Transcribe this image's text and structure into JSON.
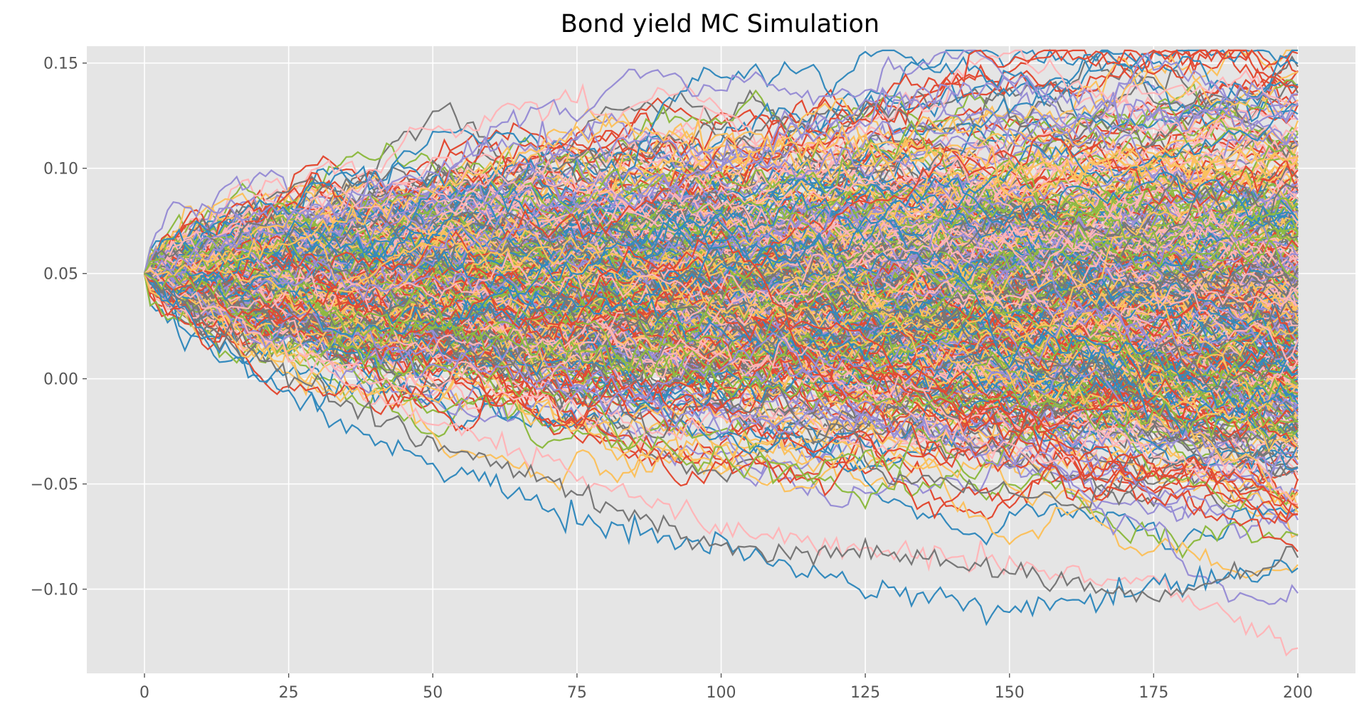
{
  "chart_data": {
    "type": "line",
    "title": "Bond yield MC Simulation",
    "xlabel": "",
    "ylabel": "",
    "xlim": [
      -10,
      210
    ],
    "ylim": [
      -0.14,
      0.158
    ],
    "x_ticks": [
      0,
      25,
      50,
      75,
      100,
      125,
      150,
      175,
      200
    ],
    "x_tick_labels": [
      "0",
      "25",
      "50",
      "75",
      "100",
      "125",
      "150",
      "175",
      "200"
    ],
    "y_ticks": [
      0.15,
      0.1,
      0.05,
      0.0,
      -0.05,
      -0.1
    ],
    "y_tick_labels": [
      "0.15",
      "0.10",
      "0.05",
      "0.00",
      "−0.05",
      "−0.10"
    ],
    "grid": true,
    "style": "ggplot",
    "background_color": "#e5e5e5",
    "color_cycle": [
      "#e24a33",
      "#348abd",
      "#988ed5",
      "#777777",
      "#fbc15e",
      "#8eba42",
      "#ffb5b8"
    ],
    "n_steps": 200,
    "n_paths_approx": 500,
    "start_value": 0.05,
    "representative_series": [
      {
        "x": [
          0,
          20,
          40,
          60,
          80,
          100,
          125,
          150,
          175,
          200
        ],
        "values": [
          0.05,
          0.07,
          0.09,
          0.11,
          0.12,
          0.105,
          0.13,
          0.14,
          0.125,
          0.123
        ]
      },
      {
        "x": [
          0,
          20,
          40,
          60,
          80,
          100,
          125,
          150,
          175,
          200
        ],
        "values": [
          0.05,
          0.06,
          0.08,
          0.1,
          0.12,
          0.11,
          0.11,
          0.1,
          0.1,
          0.105
        ]
      },
      {
        "x": [
          0,
          20,
          40,
          60,
          80,
          100,
          125,
          150,
          175,
          200
        ],
        "values": [
          0.05,
          0.02,
          -0.01,
          -0.03,
          -0.05,
          -0.07,
          -0.08,
          -0.09,
          -0.095,
          -0.128
        ]
      },
      {
        "x": [
          0,
          20,
          40,
          60,
          80,
          100,
          125,
          150,
          175,
          200
        ],
        "values": [
          0.05,
          0.0,
          -0.03,
          -0.05,
          -0.07,
          -0.08,
          -0.1,
          -0.11,
          -0.1,
          -0.09
        ]
      },
      {
        "x": [
          0,
          20,
          40,
          60,
          80,
          100,
          125,
          150,
          175,
          200
        ],
        "values": [
          0.05,
          0.01,
          -0.02,
          -0.04,
          -0.06,
          -0.08,
          -0.085,
          -0.09,
          -0.105,
          -0.085
        ]
      },
      {
        "x": [
          0,
          20,
          40,
          60,
          80,
          100,
          125,
          150,
          175,
          200
        ],
        "values": [
          0.05,
          0.04,
          0.03,
          0.02,
          0.01,
          0.0,
          -0.01,
          -0.01,
          -0.02,
          -0.02
        ]
      }
    ]
  }
}
